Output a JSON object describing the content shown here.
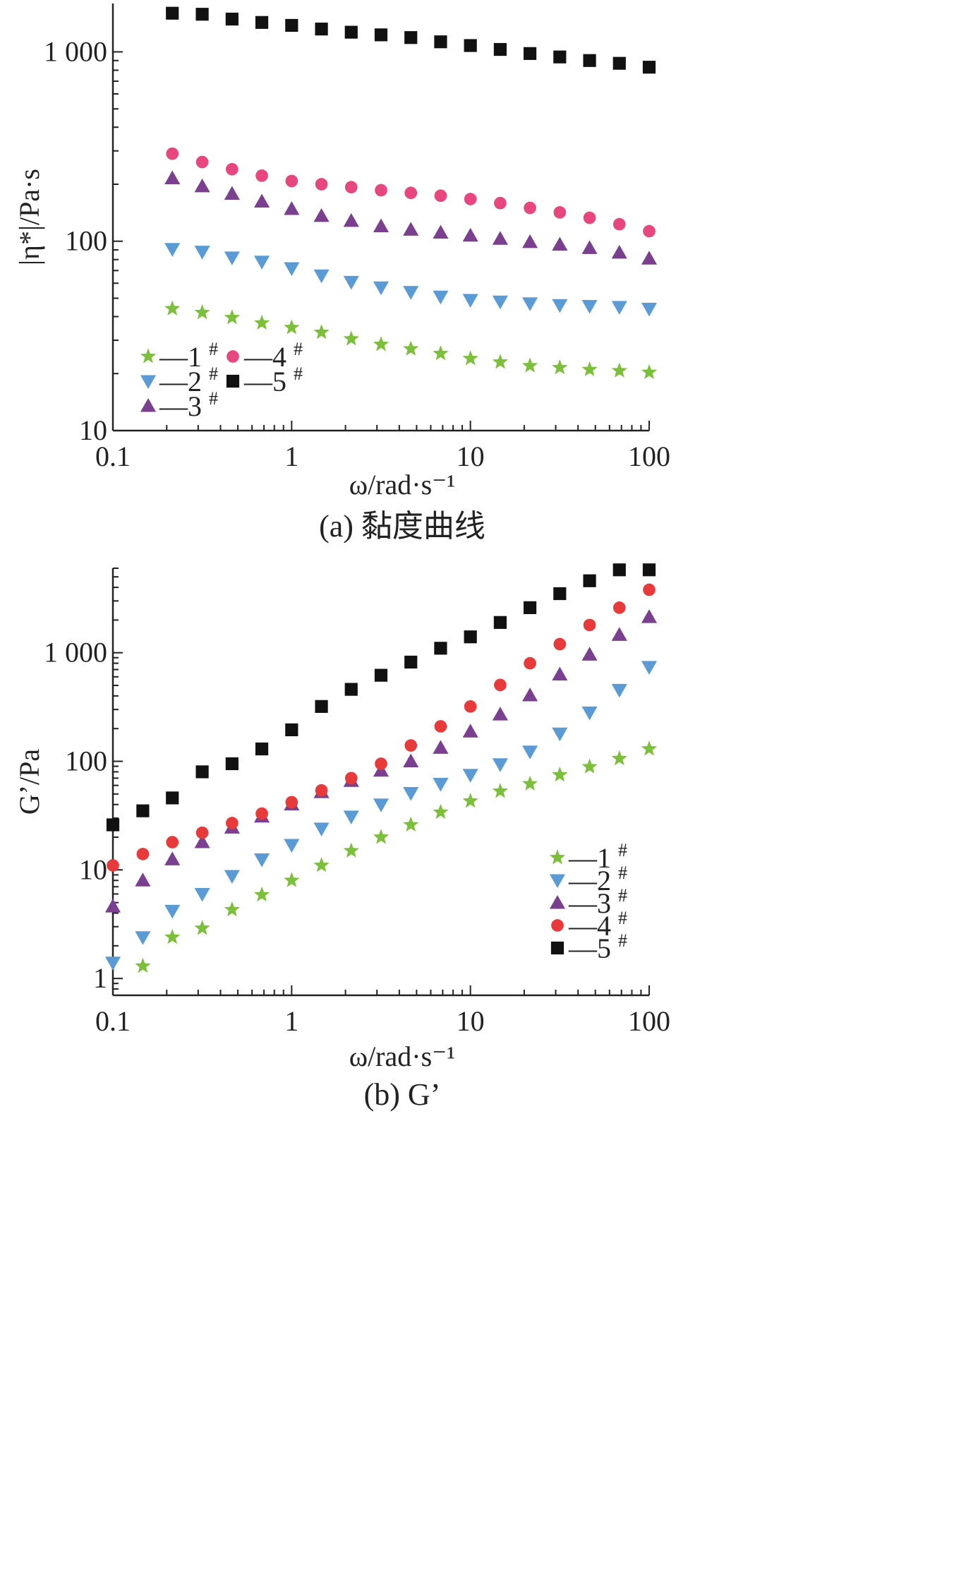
{
  "colors": {
    "s1": "#7bbf3a",
    "s2": "#5b9bd5",
    "s3": "#7b3f8f",
    "s4_a": "#e8467e",
    "s4_b": "#e83a3a",
    "s5": "#111111",
    "axis": "#222222"
  },
  "chart_data": [
    {
      "type": "scatter",
      "title": "",
      "caption": "(a) 黏度曲线",
      "xlabel": "ω/rad·s⁻¹",
      "ylabel": "|η*|/Pa·s",
      "xscale": "log",
      "yscale": "log",
      "xlim": [
        0.1,
        100
      ],
      "ylim": [
        10,
        1800
      ],
      "xticks": [
        {
          "value": 0.1,
          "label": "0.1"
        },
        {
          "value": 1,
          "label": "1"
        },
        {
          "value": 10,
          "label": "10"
        },
        {
          "value": 100,
          "label": "100"
        }
      ],
      "yticks": [
        {
          "value": 10,
          "label": "10"
        },
        {
          "value": 100,
          "label": "100"
        },
        {
          "value": 1000,
          "label": "1 000"
        }
      ],
      "legend": {
        "placement": "bottom-left",
        "columns": 2
      },
      "x": [
        0.215,
        0.316,
        0.464,
        0.681,
        1,
        1.468,
        2.154,
        3.162,
        4.642,
        6.813,
        10,
        14.68,
        21.54,
        31.62,
        46.42,
        68.13,
        100
      ],
      "series": [
        {
          "key": "s1",
          "name": "—1",
          "sup": "#",
          "marker": "star",
          "color": "#7bbf3a",
          "values": [
            44,
            42,
            39.5,
            37,
            35,
            33,
            30.5,
            28.5,
            27,
            25.5,
            24,
            23,
            22,
            21.5,
            21,
            20.7,
            20.3
          ]
        },
        {
          "key": "s2",
          "name": "—2",
          "sup": "#",
          "marker": "triangle-down",
          "color": "#5b9bd5",
          "values": [
            91,
            88,
            82,
            78,
            72,
            66,
            61,
            57,
            54,
            51,
            49,
            48,
            47,
            46,
            45.5,
            45,
            44
          ]
        },
        {
          "key": "s3",
          "name": "—3",
          "sup": "#",
          "marker": "triangle-up",
          "color": "#7b3f8f",
          "values": [
            215,
            195,
            178,
            162,
            148,
            136,
            128,
            120,
            115,
            111,
            107,
            103,
            99,
            96,
            92,
            87,
            81
          ]
        },
        {
          "key": "s4",
          "name": "—4",
          "sup": "#",
          "marker": "circle",
          "color": "#e8467e",
          "values": [
            290,
            262,
            240,
            222,
            208,
            200,
            193,
            186,
            180,
            174,
            167,
            159,
            150,
            142,
            133,
            123,
            113
          ]
        },
        {
          "key": "s5",
          "name": "—5",
          "sup": "#",
          "marker": "square",
          "color": "#111111",
          "values": [
            1600,
            1580,
            1490,
            1430,
            1380,
            1320,
            1270,
            1230,
            1190,
            1130,
            1080,
            1030,
            980,
            940,
            900,
            870,
            830
          ]
        }
      ]
    },
    {
      "type": "scatter",
      "title": "",
      "caption": "(b) G’",
      "xlabel": "ω/rad·s⁻¹",
      "ylabel": "G’/Pa",
      "xscale": "log",
      "yscale": "log",
      "xlim": [
        0.1,
        100
      ],
      "ylim": [
        0.7,
        6000
      ],
      "xticks": [
        {
          "value": 0.1,
          "label": "0.1"
        },
        {
          "value": 1,
          "label": "1"
        },
        {
          "value": 10,
          "label": "10"
        },
        {
          "value": 100,
          "label": "100"
        }
      ],
      "yticks": [
        {
          "value": 1,
          "label": "1"
        },
        {
          "value": 10,
          "label": "10"
        },
        {
          "value": 100,
          "label": "100"
        },
        {
          "value": 1000,
          "label": "1 000"
        }
      ],
      "legend": {
        "placement": "bottom-right",
        "columns": 1
      },
      "x": [
        0.1,
        0.147,
        0.215,
        0.316,
        0.464,
        0.681,
        1,
        1.468,
        2.154,
        3.162,
        4.642,
        6.813,
        10,
        14.68,
        21.54,
        31.62,
        46.42,
        68.13,
        100
      ],
      "series": [
        {
          "key": "s1",
          "name": "—1",
          "sup": "#",
          "marker": "star",
          "color": "#7bbf3a",
          "values": [
            null,
            1.3,
            2.4,
            2.9,
            4.3,
            5.9,
            8,
            11,
            15,
            20,
            26,
            34,
            43,
            53,
            62,
            75,
            89,
            106,
            130
          ]
        },
        {
          "key": "s2",
          "name": "—2",
          "sup": "#",
          "marker": "triangle-down",
          "color": "#5b9bd5",
          "values": [
            1.4,
            2.4,
            4.2,
            6,
            8.8,
            12.5,
            17,
            24,
            31,
            40,
            51,
            62,
            75,
            94,
            123,
            180,
            282,
            455,
            740
          ]
        },
        {
          "key": "s3",
          "name": "—3",
          "sup": "#",
          "marker": "triangle-up",
          "color": "#7b3f8f",
          "values": [
            4.6,
            8,
            12.5,
            18,
            24.5,
            31,
            40,
            52,
            66,
            82,
            100,
            133,
            188,
            270,
            405,
            630,
            960,
            1460,
            2130
          ]
        },
        {
          "key": "s4",
          "name": "—4",
          "sup": "#",
          "marker": "circle",
          "color": "#e83a3a",
          "values": [
            11,
            14,
            18,
            22,
            27,
            33,
            42,
            54,
            70,
            95,
            140,
            210,
            320,
            505,
            800,
            1200,
            1800,
            2600,
            3800
          ]
        },
        {
          "key": "s5",
          "name": "—5",
          "sup": "#",
          "marker": "square",
          "color": "#111111",
          "values": [
            26,
            35,
            46,
            80,
            95,
            130,
            195,
            320,
            460,
            620,
            820,
            1100,
            1400,
            1900,
            2600,
            3500,
            4600,
            5800,
            5800
          ]
        }
      ]
    }
  ]
}
